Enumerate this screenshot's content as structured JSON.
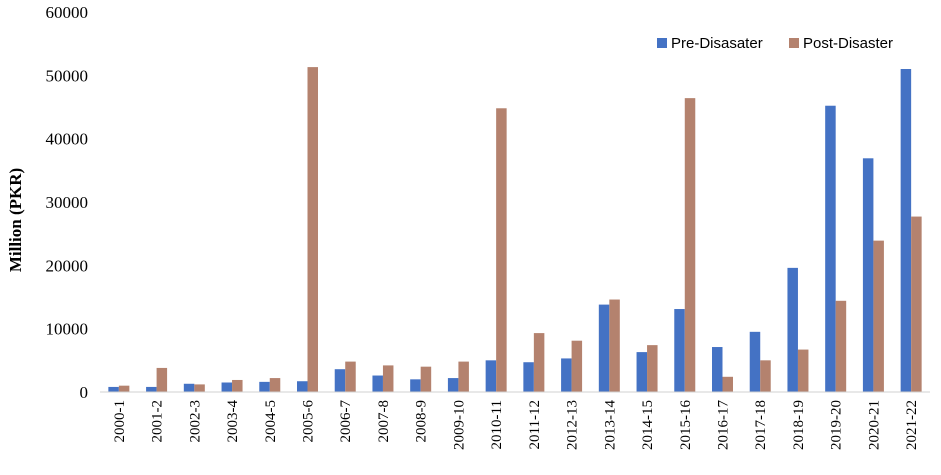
{
  "chart_data": {
    "type": "bar",
    "title": "",
    "xlabel": "",
    "ylabel": "Million (PKR)",
    "ylim": [
      0,
      60000
    ],
    "yticks": [
      0,
      10000,
      20000,
      30000,
      40000,
      50000,
      60000
    ],
    "ytick_labels": [
      "0",
      "10000",
      "20000",
      "30000",
      "40000",
      "50000",
      "60000"
    ],
    "grid": false,
    "legend_position": "top-right",
    "categories": [
      "2000-1",
      "2001-2",
      "2002-3",
      "2003-4",
      "2004-5",
      "2005-6",
      "2006-7",
      "2007-8",
      "2008-9",
      "2009-10",
      "2010-11",
      "2011-12",
      "2012-13",
      "2013-14",
      "2014-15",
      "2015-16",
      "2016-17",
      "2017-18",
      "2018-19",
      "2019-20",
      "2020-21",
      "2021-22"
    ],
    "series": [
      {
        "name": "Pre-Disasater",
        "color": "#4472C4",
        "values": [
          800,
          800,
          1300,
          1500,
          1600,
          1700,
          3600,
          2600,
          2000,
          2200,
          5000,
          4700,
          5300,
          13800,
          6300,
          13100,
          7100,
          9500,
          19600,
          45200,
          36900,
          51000
        ]
      },
      {
        "name": "Post-Disaster",
        "color": "#B4826E",
        "values": [
          1000,
          3800,
          1200,
          1900,
          2200,
          51300,
          4800,
          4200,
          4000,
          4800,
          44800,
          9300,
          8100,
          14600,
          7400,
          46400,
          2400,
          5000,
          6700,
          14400,
          23900,
          27700
        ]
      }
    ]
  }
}
